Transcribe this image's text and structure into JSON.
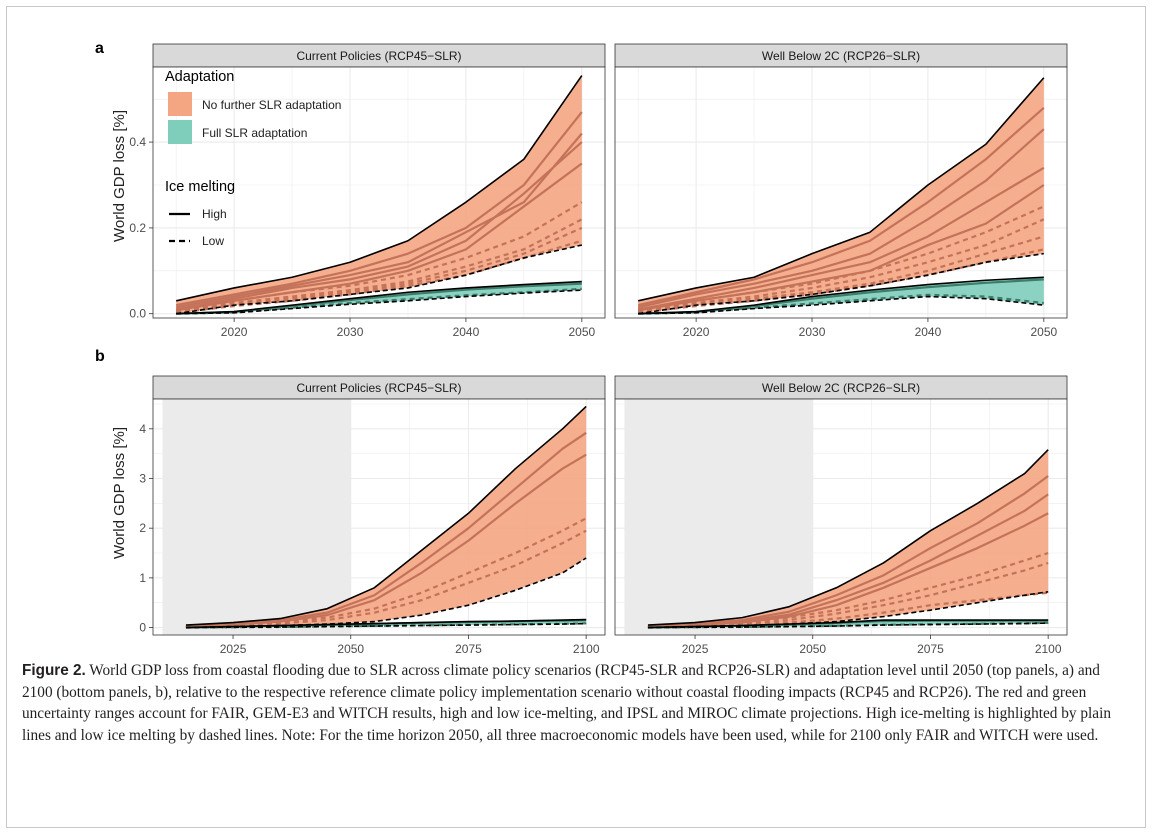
{
  "figure": {
    "caption_label": "Figure 2.",
    "caption_text": " World GDP loss from coastal flooding due to SLR across climate policy scenarios (RCP45-SLR and RCP26-SLR) and adaptation level until 2050 (top panels, a) and 2100 (bottom panels, b), relative to the respective reference climate policy implementation scenario without coastal flooding impacts (RCP45 and RCP26). The red and green uncertainty ranges account for FAIR, GEM-E3 and WITCH results, high and low ice-melting, and IPSL and MIROC climate projections. High ice-melting is highlighted by plain lines and low ice melting by dashed lines. Note: For the time horizon 2050, all three macroeconomic models have been used, while for 2100 only FAIR and WITCH were used."
  },
  "colors": {
    "no_adapt_fill": "#f4a582",
    "no_adapt_line": "#c4735a",
    "full_adapt_fill": "#7fcdbb",
    "full_adapt_line": "#3d7d6a",
    "panel_bg": "#ffffff",
    "grid": "#ebebeb",
    "strip_bg": "#d9d9d9",
    "shade": "#ebebeb"
  },
  "legend": {
    "title": "Adaptation",
    "items": [
      {
        "label": "No further SLR adaptation",
        "color": "#f4a582"
      },
      {
        "label": "Full SLR adaptation",
        "color": "#7fcdbb"
      }
    ],
    "linetype_title": "Ice melting",
    "linetypes": [
      {
        "label": "High",
        "dash": "solid"
      },
      {
        "label": "Low",
        "dash": "dashed"
      }
    ]
  },
  "chart_data": [
    {
      "type": "area",
      "panel_letter": "a",
      "facet": "Current Policies (RCP45−SLR)",
      "ylabel": "World GDP loss [%]",
      "xlim": [
        2013,
        2052
      ],
      "ylim": [
        -0.01,
        0.575
      ],
      "xticks": [
        2020,
        2030,
        2040,
        2050
      ],
      "yticks": [
        0.0,
        0.2,
        0.4
      ],
      "ytick_labels": [
        "0.0",
        "0.2",
        "0.4"
      ],
      "x": [
        2015,
        2020,
        2025,
        2030,
        2035,
        2040,
        2045,
        2050
      ],
      "no_adaptation": {
        "upper": [
          0.03,
          0.06,
          0.085,
          0.12,
          0.17,
          0.26,
          0.36,
          0.555
        ],
        "lower": [
          0.0,
          0.02,
          0.03,
          0.045,
          0.06,
          0.09,
          0.13,
          0.16
        ],
        "high_lines": [
          [
            0.02,
            0.045,
            0.07,
            0.1,
            0.14,
            0.2,
            0.3,
            0.47
          ],
          [
            0.015,
            0.04,
            0.065,
            0.09,
            0.12,
            0.19,
            0.26,
            0.42
          ],
          [
            0.01,
            0.035,
            0.06,
            0.08,
            0.11,
            0.17,
            0.28,
            0.4
          ],
          [
            0.008,
            0.03,
            0.05,
            0.07,
            0.1,
            0.15,
            0.25,
            0.35
          ]
        ],
        "low_lines": [
          [
            0.01,
            0.03,
            0.05,
            0.065,
            0.09,
            0.13,
            0.18,
            0.26
          ],
          [
            0.005,
            0.025,
            0.04,
            0.055,
            0.075,
            0.11,
            0.15,
            0.22
          ],
          [
            0.003,
            0.02,
            0.035,
            0.05,
            0.07,
            0.1,
            0.14,
            0.2
          ],
          [
            0.002,
            0.018,
            0.03,
            0.045,
            0.065,
            0.09,
            0.13,
            0.17
          ]
        ]
      },
      "full_adaptation": {
        "upper": [
          0.0,
          0.005,
          0.02,
          0.035,
          0.05,
          0.06,
          0.068,
          0.075
        ],
        "lower": [
          0.0,
          0.002,
          0.012,
          0.022,
          0.03,
          0.04,
          0.048,
          0.055
        ],
        "high_lines": [
          [
            0.0,
            0.004,
            0.018,
            0.032,
            0.045,
            0.056,
            0.064,
            0.07
          ]
        ],
        "low_lines": [
          [
            0.0,
            0.003,
            0.014,
            0.025,
            0.034,
            0.043,
            0.05,
            0.058
          ]
        ]
      }
    },
    {
      "type": "area",
      "facet": "Well Below 2C (RCP26−SLR)",
      "xlim": [
        2013,
        2052
      ],
      "ylim": [
        -0.01,
        0.575
      ],
      "xticks": [
        2020,
        2030,
        2040,
        2050
      ],
      "yticks": [
        0.0,
        0.2,
        0.4
      ],
      "x": [
        2015,
        2020,
        2025,
        2030,
        2035,
        2040,
        2045,
        2050
      ],
      "no_adaptation": {
        "upper": [
          0.03,
          0.06,
          0.085,
          0.14,
          0.19,
          0.3,
          0.395,
          0.55
        ],
        "lower": [
          0.0,
          0.02,
          0.03,
          0.045,
          0.065,
          0.09,
          0.12,
          0.14
        ],
        "high_lines": [
          [
            0.02,
            0.05,
            0.08,
            0.12,
            0.17,
            0.26,
            0.36,
            0.48
          ],
          [
            0.015,
            0.045,
            0.07,
            0.1,
            0.14,
            0.22,
            0.31,
            0.43
          ],
          [
            0.01,
            0.035,
            0.06,
            0.09,
            0.12,
            0.18,
            0.26,
            0.34
          ],
          [
            0.008,
            0.03,
            0.05,
            0.075,
            0.1,
            0.16,
            0.21,
            0.3
          ]
        ],
        "low_lines": [
          [
            0.01,
            0.03,
            0.05,
            0.07,
            0.1,
            0.14,
            0.19,
            0.25
          ],
          [
            0.006,
            0.025,
            0.04,
            0.06,
            0.085,
            0.12,
            0.16,
            0.22
          ],
          [
            0.004,
            0.02,
            0.035,
            0.05,
            0.07,
            0.1,
            0.14,
            0.18
          ],
          [
            0.002,
            0.018,
            0.03,
            0.045,
            0.065,
            0.09,
            0.12,
            0.15
          ]
        ]
      },
      "full_adaptation": {
        "upper": [
          0.0,
          0.005,
          0.02,
          0.04,
          0.055,
          0.068,
          0.078,
          0.085
        ],
        "lower": [
          0.0,
          0.002,
          0.012,
          0.02,
          0.03,
          0.04,
          0.035,
          0.02
        ],
        "high_lines": [
          [
            0.0,
            0.004,
            0.018,
            0.035,
            0.05,
            0.062,
            0.072,
            0.08
          ]
        ],
        "low_lines": [
          [
            0.0,
            0.003,
            0.014,
            0.024,
            0.034,
            0.044,
            0.04,
            0.025
          ]
        ]
      }
    },
    {
      "type": "area",
      "panel_letter": "b",
      "facet": "Current Policies (RCP45−SLR)",
      "ylabel": "World GDP loss [%]",
      "xlim": [
        2008,
        2104
      ],
      "ylim": [
        -0.15,
        4.6
      ],
      "xticks": [
        2025,
        2050,
        2075,
        2100
      ],
      "yticks": [
        0,
        1,
        2,
        3,
        4
      ],
      "shaded_range": [
        2010,
        2050
      ],
      "x": [
        2015,
        2025,
        2035,
        2045,
        2055,
        2065,
        2075,
        2085,
        2095,
        2100
      ],
      "no_adaptation": {
        "upper": [
          0.05,
          0.1,
          0.18,
          0.38,
          0.8,
          1.55,
          2.3,
          3.2,
          4.0,
          4.45
        ],
        "lower": [
          0.0,
          0.02,
          0.04,
          0.07,
          0.12,
          0.25,
          0.45,
          0.75,
          1.1,
          1.4
        ],
        "high_lines": [
          [
            0.03,
            0.08,
            0.15,
            0.3,
            0.65,
            1.3,
            2.0,
            2.8,
            3.6,
            3.92
          ],
          [
            0.02,
            0.06,
            0.12,
            0.25,
            0.55,
            1.1,
            1.75,
            2.5,
            3.2,
            3.48
          ]
        ],
        "low_lines": [
          [
            0.02,
            0.05,
            0.1,
            0.2,
            0.38,
            0.7,
            1.1,
            1.5,
            1.95,
            2.2
          ],
          [
            0.01,
            0.04,
            0.08,
            0.15,
            0.3,
            0.55,
            0.9,
            1.25,
            1.7,
            1.95
          ]
        ]
      },
      "full_adaptation": {
        "upper": [
          0.0,
          0.02,
          0.04,
          0.06,
          0.08,
          0.1,
          0.12,
          0.13,
          0.15,
          0.16
        ],
        "lower": [
          0.0,
          0.005,
          0.01,
          0.02,
          0.03,
          0.04,
          0.05,
          0.06,
          0.07,
          0.08
        ],
        "high_lines": [
          [
            0.0,
            0.015,
            0.035,
            0.055,
            0.075,
            0.095,
            0.11,
            0.125,
            0.14,
            0.15
          ]
        ],
        "low_lines": [
          [
            0.0,
            0.006,
            0.012,
            0.022,
            0.033,
            0.044,
            0.055,
            0.065,
            0.075,
            0.085
          ]
        ]
      }
    },
    {
      "type": "area",
      "facet": "Well Below 2C (RCP26−SLR)",
      "xlim": [
        2008,
        2104
      ],
      "ylim": [
        -0.15,
        4.6
      ],
      "xticks": [
        2025,
        2050,
        2075,
        2100
      ],
      "yticks": [
        0,
        1,
        2,
        3,
        4
      ],
      "shaded_range": [
        2010,
        2050
      ],
      "x": [
        2015,
        2025,
        2035,
        2045,
        2055,
        2065,
        2075,
        2085,
        2095,
        2100
      ],
      "no_adaptation": {
        "upper": [
          0.05,
          0.1,
          0.2,
          0.42,
          0.8,
          1.3,
          1.95,
          2.5,
          3.1,
          3.58
        ],
        "lower": [
          0.0,
          0.02,
          0.04,
          0.07,
          0.12,
          0.22,
          0.35,
          0.5,
          0.65,
          0.72
        ],
        "high_lines": [
          [
            0.03,
            0.08,
            0.15,
            0.32,
            0.65,
            1.05,
            1.6,
            2.1,
            2.7,
            3.05
          ],
          [
            0.02,
            0.06,
            0.12,
            0.26,
            0.55,
            0.9,
            1.35,
            1.85,
            2.35,
            2.68
          ],
          [
            0.015,
            0.05,
            0.1,
            0.22,
            0.45,
            0.8,
            1.2,
            1.6,
            2.05,
            2.3
          ]
        ],
        "low_lines": [
          [
            0.02,
            0.05,
            0.1,
            0.2,
            0.35,
            0.55,
            0.8,
            1.05,
            1.35,
            1.5
          ],
          [
            0.01,
            0.04,
            0.08,
            0.15,
            0.28,
            0.45,
            0.65,
            0.9,
            1.15,
            1.3
          ],
          [
            0.005,
            0.03,
            0.06,
            0.1,
            0.18,
            0.3,
            0.45,
            0.55,
            0.65,
            0.7
          ]
        ]
      },
      "full_adaptation": {
        "upper": [
          0.0,
          0.02,
          0.04,
          0.07,
          0.1,
          0.15,
          0.15,
          0.15,
          0.15,
          0.15
        ],
        "lower": [
          0.0,
          0.005,
          0.01,
          0.02,
          0.03,
          0.05,
          0.06,
          0.07,
          0.08,
          0.09
        ],
        "high_lines": [
          [
            0.0,
            0.015,
            0.035,
            0.06,
            0.09,
            0.13,
            0.14,
            0.14,
            0.14,
            0.14
          ]
        ],
        "low_lines": [
          [
            0.0,
            0.006,
            0.012,
            0.022,
            0.035,
            0.055,
            0.065,
            0.075,
            0.085,
            0.095
          ]
        ]
      }
    }
  ]
}
